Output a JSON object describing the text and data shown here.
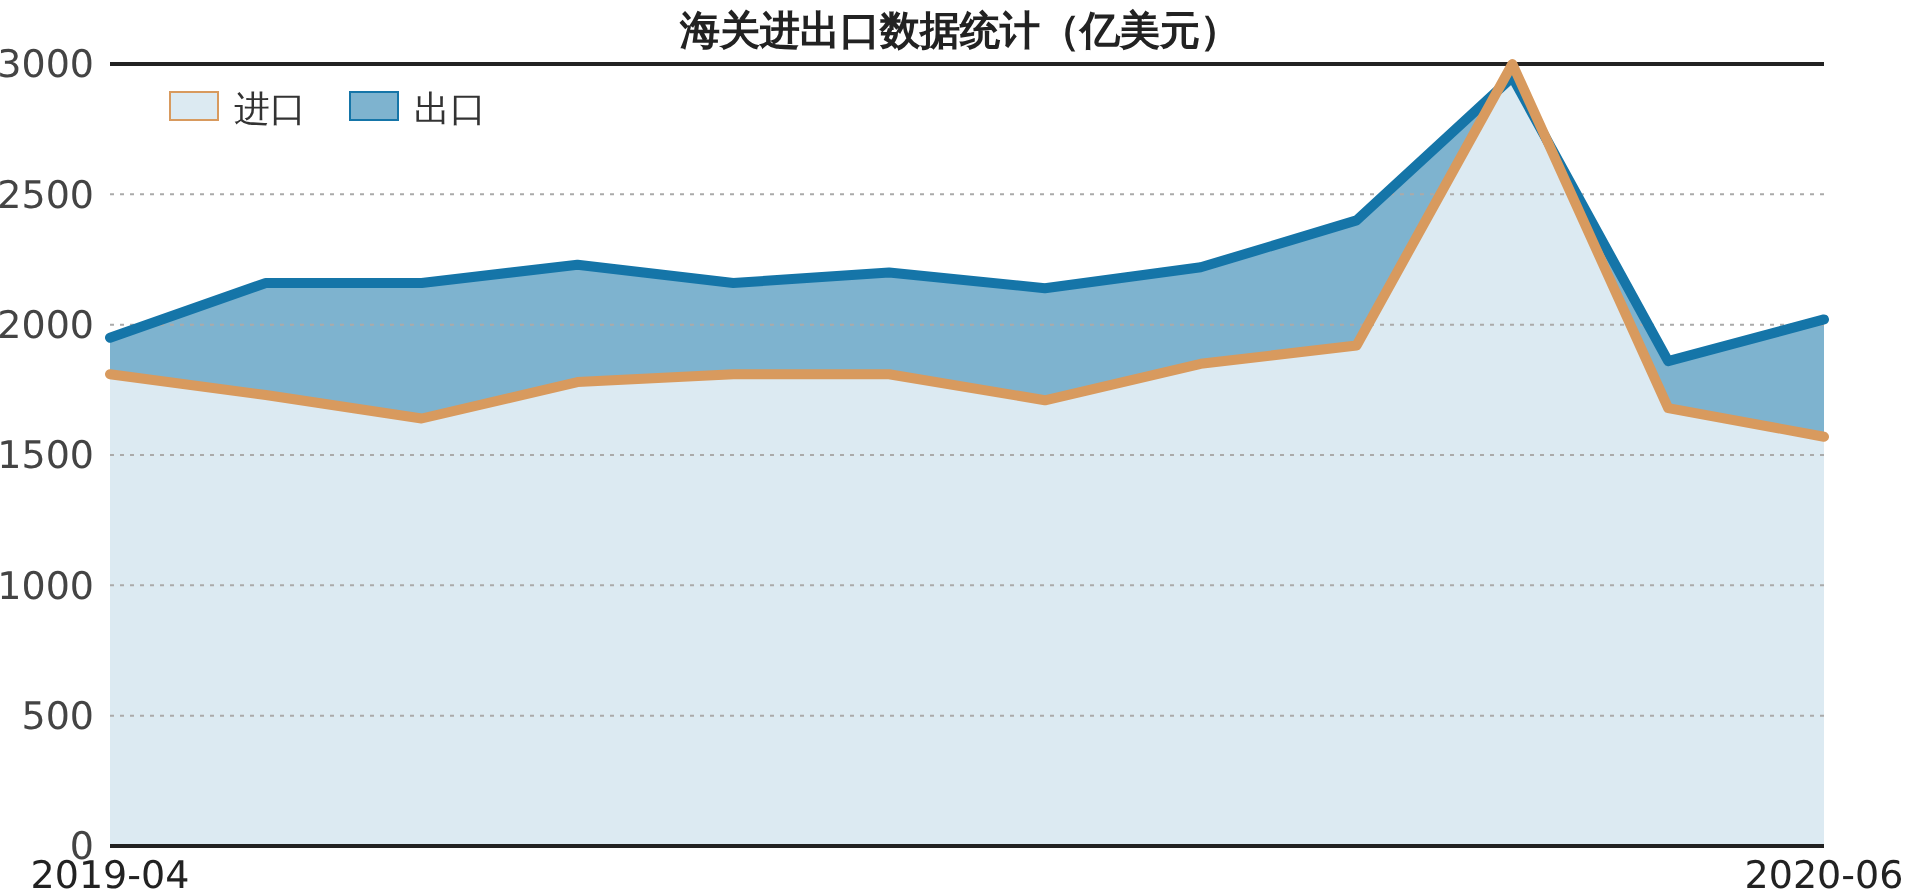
{
  "chart_data": {
    "type": "area",
    "title": "海关进出口数据统计（亿美元）",
    "categories": [
      "2019-04",
      null,
      null,
      null,
      null,
      null,
      null,
      null,
      null,
      null,
      null,
      "2020-06"
    ],
    "series": [
      {
        "name": "出口",
        "color": "#1575a8",
        "values": [
          1950,
          2160,
          2160,
          2230,
          2160,
          2200,
          2140,
          2220,
          2400,
          2950,
          1860,
          2020
        ]
      },
      {
        "name": "进口",
        "color": "#d89a5e",
        "values": [
          1810,
          1730,
          1640,
          1780,
          1810,
          1810,
          1710,
          1850,
          1920,
          3000,
          1680,
          1570
        ]
      }
    ],
    "ylim": [
      0,
      3000
    ],
    "yticks": [
      0,
      500,
      1000,
      1500,
      2000,
      2500,
      3000
    ],
    "grid": "y",
    "legend": "top left"
  }
}
